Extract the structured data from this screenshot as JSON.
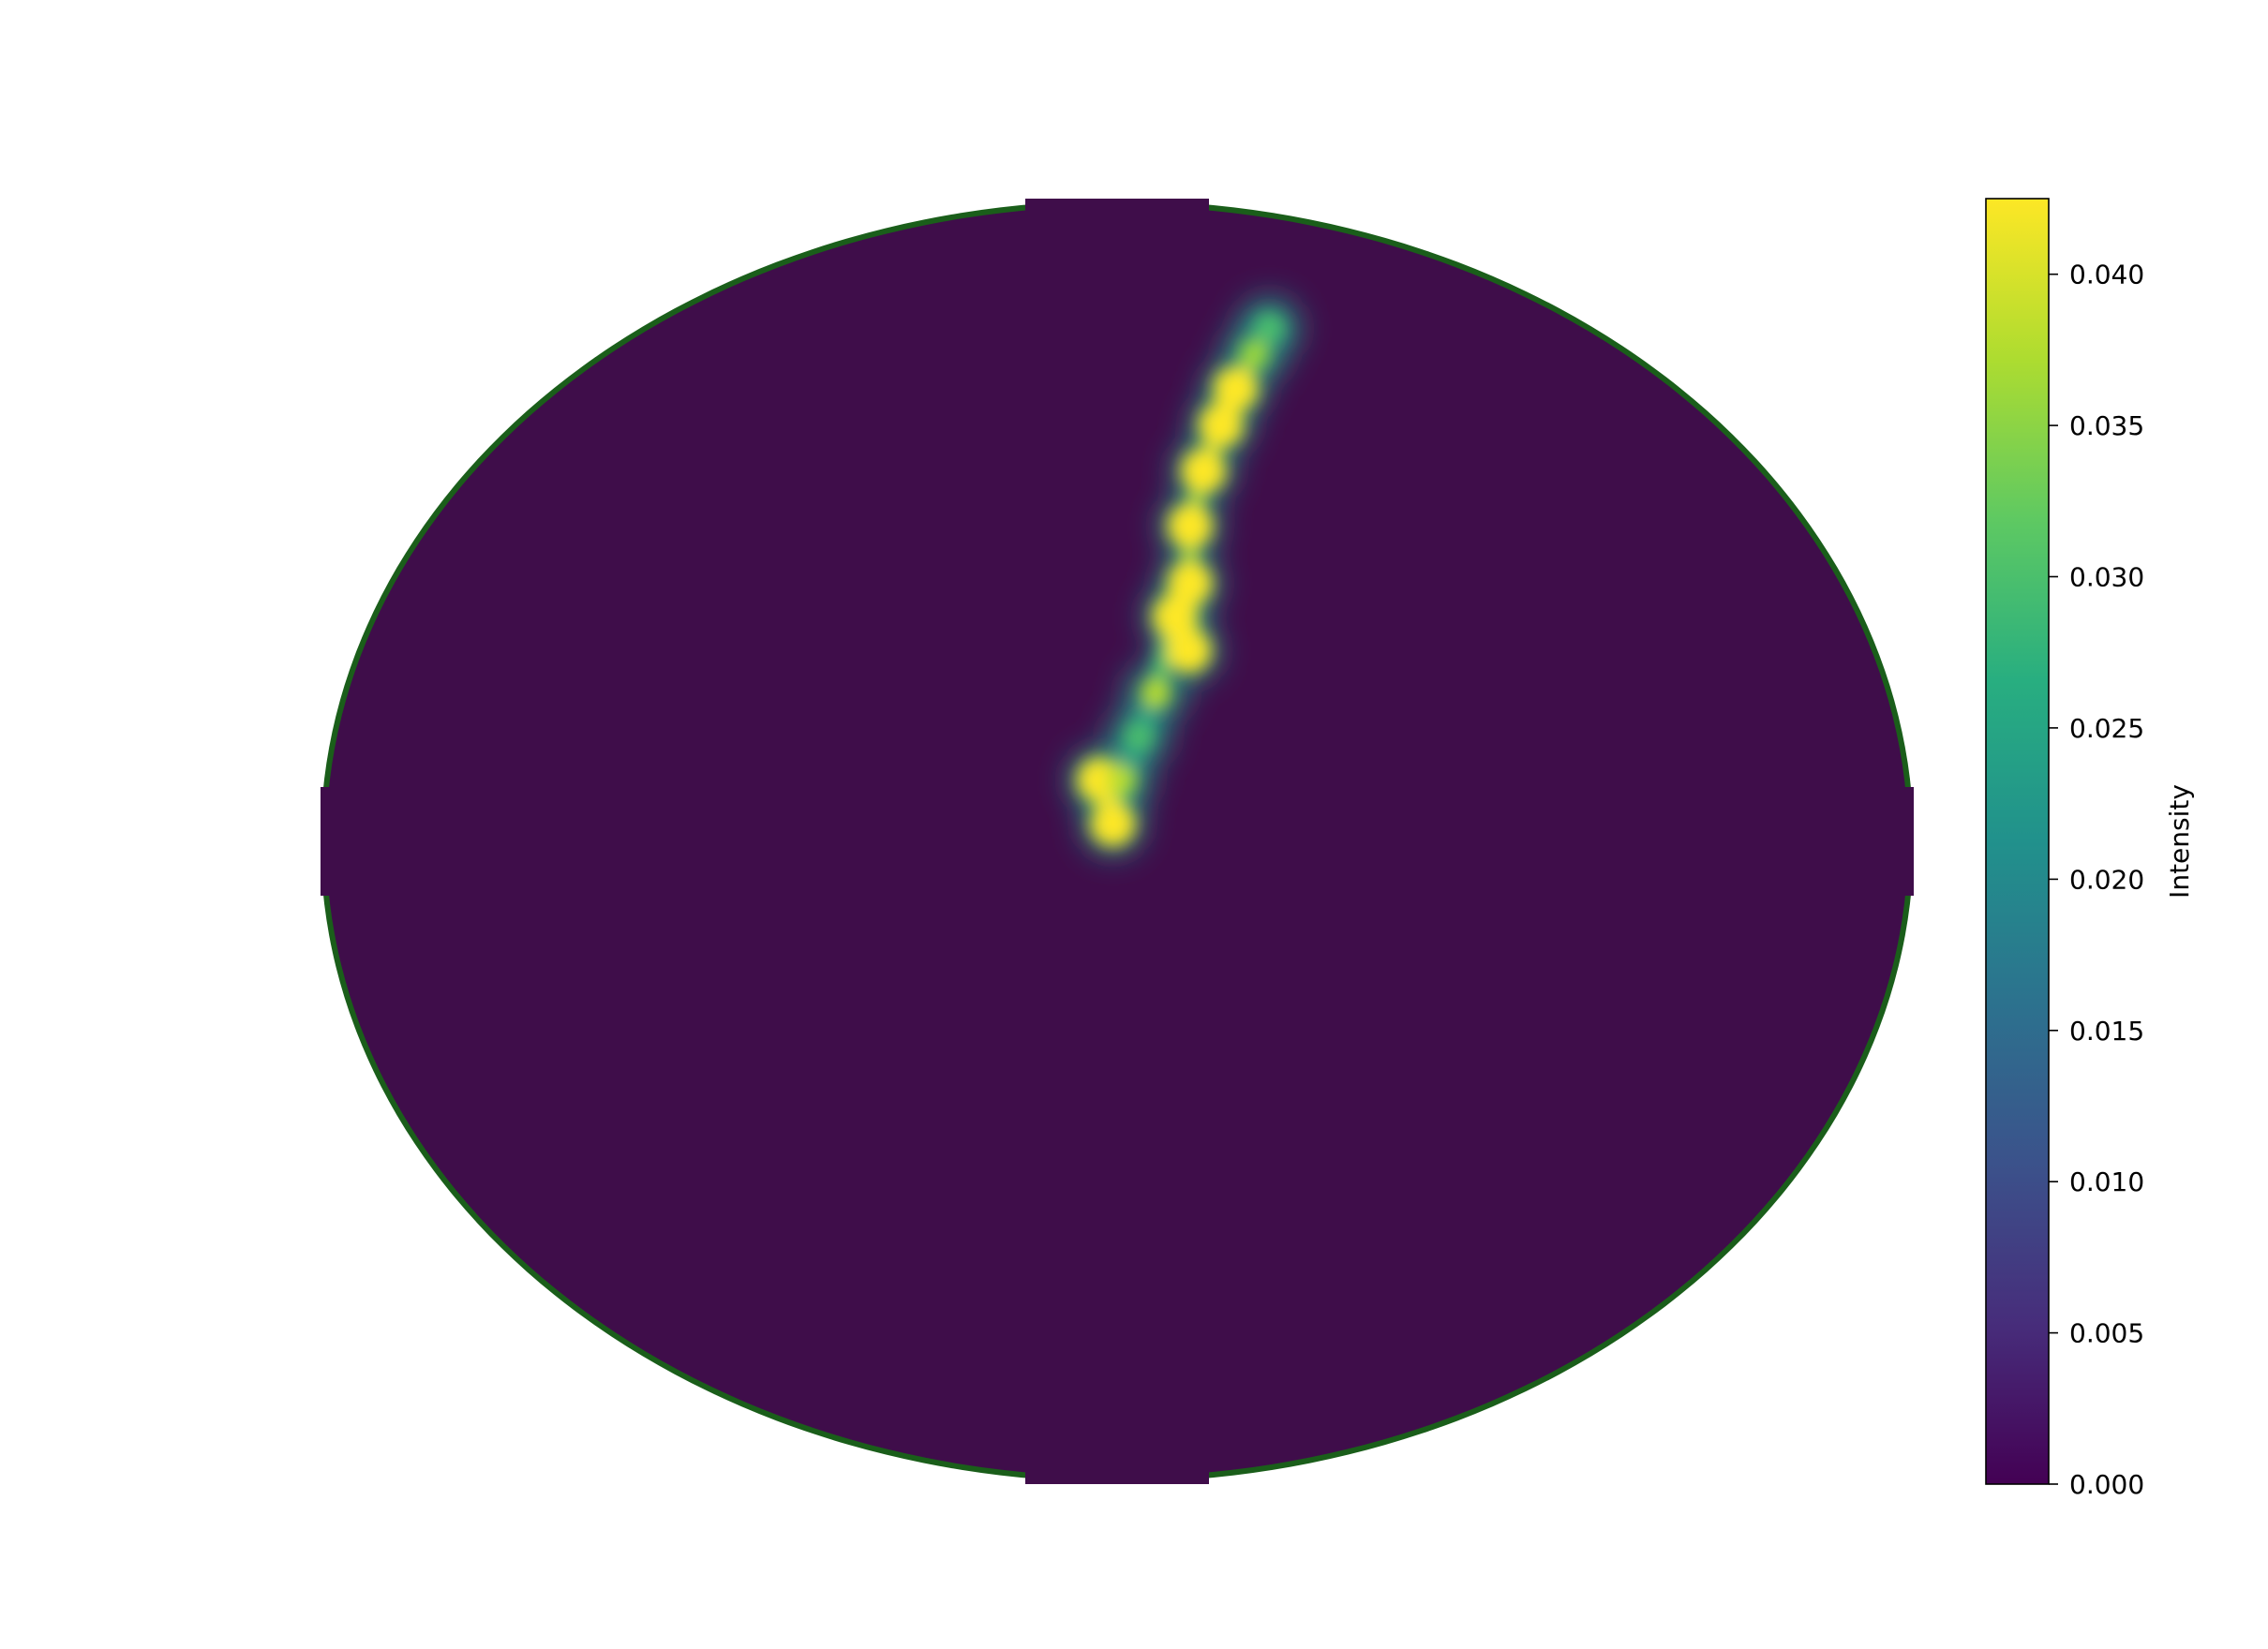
{
  "chart_data": {
    "type": "heatmap",
    "projection": "mollweide",
    "title": "",
    "colormap": "viridis",
    "background_value": 0.0,
    "outline_color": "#1a5e1a",
    "features": [
      {
        "lon": -4,
        "lat": 7,
        "value": 0.043
      },
      {
        "lon": -1,
        "lat": 2,
        "value": 0.043
      },
      {
        "lon": 1,
        "lat": 7,
        "value": 0.038
      },
      {
        "lon": 5,
        "lat": 12,
        "value": 0.03
      },
      {
        "lon": 9,
        "lat": 17,
        "value": 0.038
      },
      {
        "lon": 14,
        "lat": 26,
        "value": 0.043
      },
      {
        "lon": 17,
        "lat": 22,
        "value": 0.043
      },
      {
        "lon": 18,
        "lat": 30,
        "value": 0.043
      },
      {
        "lon": 19,
        "lat": 37,
        "value": 0.043
      },
      {
        "lon": 24,
        "lat": 44,
        "value": 0.043
      },
      {
        "lon": 31,
        "lat": 50,
        "value": 0.043
      },
      {
        "lon": 38,
        "lat": 55,
        "value": 0.043
      },
      {
        "lon": 48,
        "lat": 60,
        "value": 0.036
      },
      {
        "lon": 58,
        "lat": 64,
        "value": 0.03
      }
    ],
    "colorbar": {
      "label": "Intensity",
      "min": 0.0,
      "max": 0.0425,
      "ticks": [
        0.0,
        0.005,
        0.01,
        0.015,
        0.02,
        0.025,
        0.03,
        0.035,
        0.04
      ],
      "tick_labels": [
        "0.000",
        "0.005",
        "0.010",
        "0.015",
        "0.020",
        "0.025",
        "0.030",
        "0.035",
        "0.040"
      ]
    }
  }
}
